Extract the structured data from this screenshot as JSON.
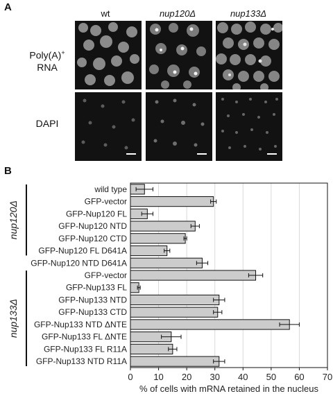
{
  "panel_a": {
    "letter": "A",
    "columns": [
      "wt",
      "nup120Δ",
      "nup133Δ"
    ],
    "rows": [
      {
        "line1": "Poly(A)",
        "sup": "+",
        "line2": "RNA"
      },
      {
        "line1": "DAPI",
        "sup": "",
        "line2": ""
      }
    ]
  },
  "panel_b": {
    "letter": "B",
    "group_labels": [
      "nup120Δ",
      "nup133Δ"
    ]
  },
  "chart_data": {
    "type": "bar",
    "orientation": "horizontal",
    "categories": [
      "wild type",
      "GFP-vector",
      "GFP-Nup120 FL",
      "GFP-Nup120 NTD",
      "GFP-Nup120 CTD",
      "GFP-Nup120 FL D641A",
      "GFP-Nup120 NTD D641A",
      "GFP-vector",
      "GFP-Nup133 FL",
      "GFP-Nup133 NTD",
      "GFP-Nup133 CTD",
      "GFP-Nup133 NTD ΔNTE",
      "GFP-Nup133 FL ΔNTE",
      "GFP-Nup133 FL R11A",
      "GFP-Nup133 NTD R11A"
    ],
    "values": [
      5,
      29.5,
      6,
      23,
      19.5,
      13,
      25.5,
      44.5,
      3,
      31.5,
      31,
      56.5,
      14.5,
      15,
      31.5
    ],
    "errors": [
      3,
      1,
      2,
      1.5,
      0.5,
      1,
      2,
      2.5,
      0.5,
      2,
      1.5,
      3.5,
      3.5,
      1.5,
      2
    ],
    "group_start_index": [
      1,
      7
    ],
    "xlabel": "% of cells with mRNA retained in the nucleus",
    "xlim": [
      0,
      70
    ],
    "xticks": [
      0,
      10,
      20,
      30,
      40,
      50,
      60,
      70
    ],
    "grid": true,
    "bar_color": "#cccccc",
    "grid_color": "#d9d9d9"
  }
}
